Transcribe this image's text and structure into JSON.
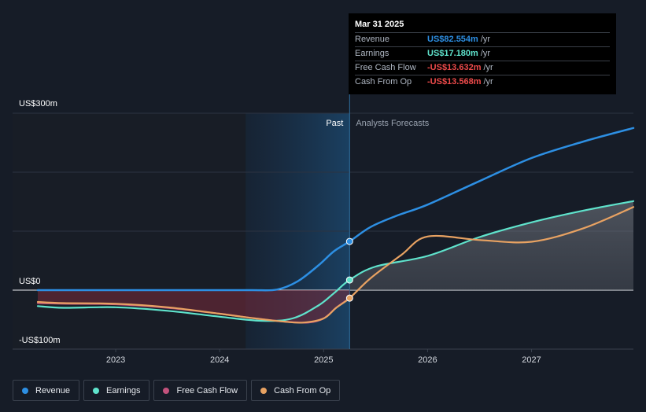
{
  "chart_data": {
    "type": "line",
    "x_ticks": [
      "2023",
      "2024",
      "2025",
      "2026",
      "2027"
    ],
    "y_ticks": [
      {
        "value": 300,
        "label": "US$300m"
      },
      {
        "value": 0,
        "label": "US$0"
      },
      {
        "value": -100,
        "label": "-US$100m"
      }
    ],
    "ylim": [
      -100,
      300
    ],
    "xlim": [
      2022.25,
      2027.98
    ],
    "zones": {
      "past": "Past",
      "forecast": "Analysts Forecasts",
      "split": 2025.25,
      "past_shade_start": 2024.25
    },
    "grid": true,
    "legend_position": "bottom",
    "series": [
      {
        "name": "Revenue",
        "key": "revenue",
        "color": "#2d8fe3",
        "points": [
          [
            2022.25,
            0
          ],
          [
            2022.8,
            0
          ],
          [
            2023.3,
            0
          ],
          [
            2023.8,
            0
          ],
          [
            2024.3,
            0
          ],
          [
            2024.55,
            1
          ],
          [
            2024.75,
            15
          ],
          [
            2024.95,
            42
          ],
          [
            2025.1,
            66
          ],
          [
            2025.25,
            82.554
          ],
          [
            2025.45,
            107
          ],
          [
            2025.7,
            126
          ],
          [
            2026.0,
            145
          ],
          [
            2026.5,
            185
          ],
          [
            2027.0,
            224
          ],
          [
            2027.5,
            252
          ],
          [
            2027.98,
            275
          ]
        ]
      },
      {
        "name": "Earnings",
        "key": "earnings",
        "color": "#5fe3cc",
        "points": [
          [
            2022.25,
            -27
          ],
          [
            2022.5,
            -30
          ],
          [
            2023.0,
            -29
          ],
          [
            2023.5,
            -35
          ],
          [
            2024.0,
            -45
          ],
          [
            2024.4,
            -52
          ],
          [
            2024.7,
            -48
          ],
          [
            2024.95,
            -26
          ],
          [
            2025.1,
            -5
          ],
          [
            2025.25,
            17.18
          ],
          [
            2025.5,
            40
          ],
          [
            2026.0,
            58
          ],
          [
            2026.5,
            90
          ],
          [
            2027.0,
            115
          ],
          [
            2027.5,
            135
          ],
          [
            2027.98,
            151
          ]
        ]
      },
      {
        "name": "Free Cash Flow",
        "key": "fcf",
        "color": "#c2527c",
        "points": [
          [
            2022.25,
            -22
          ],
          [
            2022.5,
            -23
          ],
          [
            2023.0,
            -24
          ],
          [
            2023.5,
            -30
          ],
          [
            2024.0,
            -40
          ],
          [
            2024.3,
            -47
          ],
          [
            2024.6,
            -53
          ],
          [
            2024.85,
            -55
          ],
          [
            2025.0,
            -48
          ],
          [
            2025.12,
            -30
          ],
          [
            2025.25,
            -13.632
          ]
        ]
      },
      {
        "name": "Cash From Op",
        "key": "cfo",
        "color": "#e8a262",
        "points": [
          [
            2022.25,
            -20
          ],
          [
            2022.5,
            -22
          ],
          [
            2023.0,
            -23
          ],
          [
            2023.5,
            -29
          ],
          [
            2024.0,
            -40
          ],
          [
            2024.3,
            -47
          ],
          [
            2024.6,
            -53
          ],
          [
            2024.8,
            -55
          ],
          [
            2025.0,
            -48
          ],
          [
            2025.12,
            -30
          ],
          [
            2025.25,
            -13.568
          ],
          [
            2025.45,
            20
          ],
          [
            2025.75,
            60
          ],
          [
            2026.0,
            91
          ],
          [
            2026.5,
            85
          ],
          [
            2027.0,
            82
          ],
          [
            2027.5,
            105
          ],
          [
            2027.98,
            141
          ]
        ]
      }
    ]
  },
  "tooltip": {
    "date": "Mar 31 2025",
    "rows": [
      {
        "label": "Revenue",
        "value": "US$82.554m",
        "unit": "/yr",
        "color": "#2d8fe3"
      },
      {
        "label": "Earnings",
        "value": "US$17.180m",
        "unit": "/yr",
        "color": "#5fe3cc"
      },
      {
        "label": "Free Cash Flow",
        "value": "-US$13.632m",
        "unit": "/yr",
        "color": "#ef4b4b"
      },
      {
        "label": "Cash From Op",
        "value": "-US$13.568m",
        "unit": "/yr",
        "color": "#ef4b4b"
      }
    ]
  },
  "legend": [
    {
      "label": "Revenue",
      "color": "#2d8fe3"
    },
    {
      "label": "Earnings",
      "color": "#5fe3cc"
    },
    {
      "label": "Free Cash Flow",
      "color": "#c2527c"
    },
    {
      "label": "Cash From Op",
      "color": "#e8a262"
    }
  ]
}
